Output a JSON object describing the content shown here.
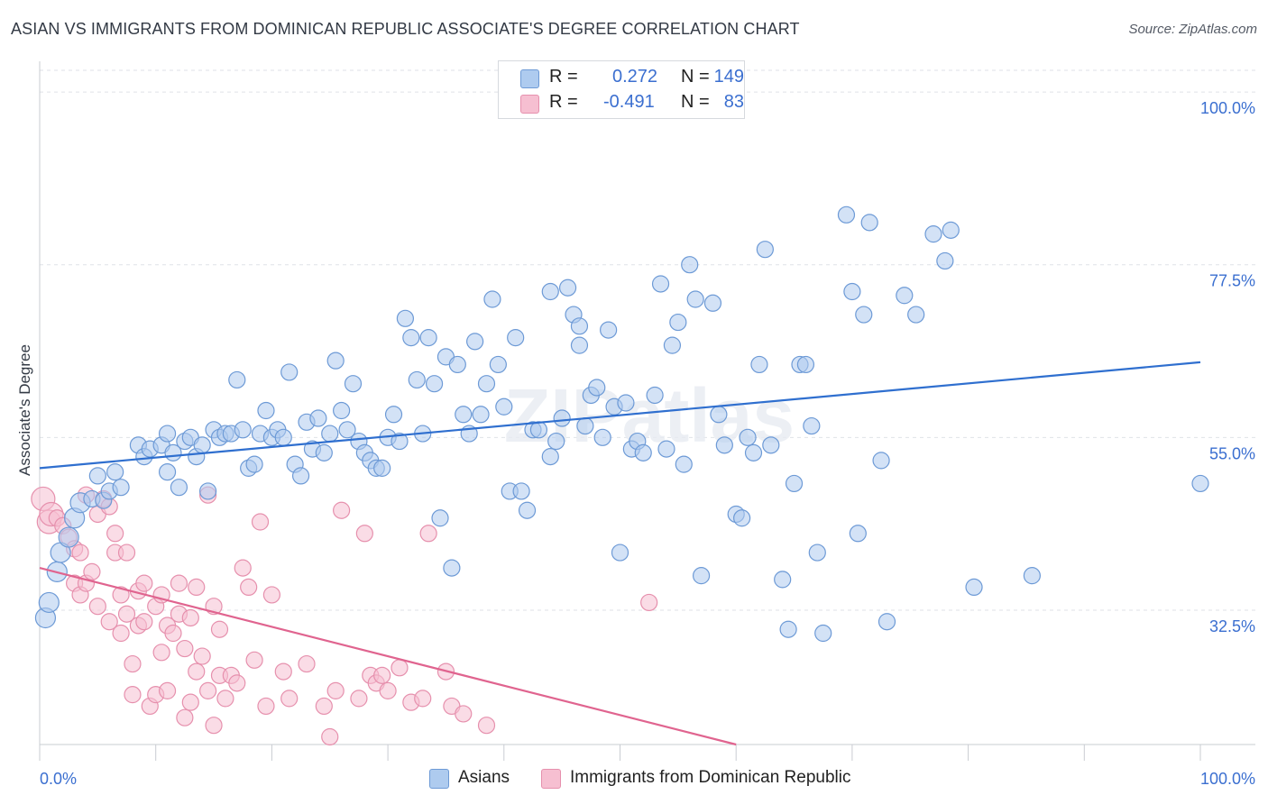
{
  "title": "ASIAN VS IMMIGRANTS FROM DOMINICAN REPUBLIC ASSOCIATE'S DEGREE CORRELATION CHART",
  "source": "Source: ZipAtlas.com",
  "watermark": "ZIPatlas",
  "legend": {
    "r_label": "R =",
    "n_label": "N =",
    "rows": [
      {
        "name": "Asians",
        "r": "0.272",
        "n": "149",
        "color": "#6d9ad6"
      },
      {
        "name": "Immigrants from Dominican Republic",
        "r": "-0.491",
        "n": "83",
        "color": "#e690ad"
      }
    ]
  },
  "chart_data": {
    "type": "scatter",
    "title": "ASIAN VS IMMIGRANTS FROM DOMINICAN REPUBLIC ASSOCIATE'S DEGREE CORRELATION CHART",
    "xlabel": "",
    "ylabel": "Associate's Degree",
    "xlim": [
      0,
      100
    ],
    "ylim": [
      15,
      104
    ],
    "x_tick_labels": [
      "0.0%",
      "100.0%"
    ],
    "y_ticks": [
      32.5,
      55.0,
      77.5,
      100.0
    ],
    "y_tick_labels": [
      "32.5%",
      "55.0%",
      "77.5%",
      "100.0%"
    ],
    "grid": true,
    "colors": {
      "asians_fill": "#aecbef",
      "asians_stroke": "#6d9ad6",
      "asians_line": "#2f6fcf",
      "dom_fill": "#f6bfd1",
      "dom_stroke": "#e690ad",
      "dom_line": "#e0648f",
      "tick_label": "#3b6fd0"
    },
    "series": [
      {
        "name": "Asians",
        "trend": [
          [
            0,
            51.0
          ],
          [
            100,
            64.8
          ]
        ],
        "points": [
          [
            0.5,
            31.5
          ],
          [
            0.8,
            33.5
          ],
          [
            1.5,
            37.5
          ],
          [
            1.8,
            40.0
          ],
          [
            2.5,
            42.0
          ],
          [
            3.0,
            44.5
          ],
          [
            3.5,
            46.5
          ],
          [
            4.5,
            47.0
          ],
          [
            5.0,
            50.0
          ],
          [
            5.5,
            46.8
          ],
          [
            6.0,
            48.0
          ],
          [
            6.5,
            50.5
          ],
          [
            7.0,
            48.5
          ],
          [
            8.5,
            54.0
          ],
          [
            9.0,
            52.5
          ],
          [
            9.5,
            53.5
          ],
          [
            10.5,
            54.0
          ],
          [
            11.0,
            55.5
          ],
          [
            11.0,
            50.5
          ],
          [
            11.5,
            53.0
          ],
          [
            12.0,
            48.5
          ],
          [
            12.5,
            54.5
          ],
          [
            13.0,
            55.0
          ],
          [
            13.5,
            52.5
          ],
          [
            14.0,
            54.0
          ],
          [
            14.5,
            48.0
          ],
          [
            15.0,
            56.0
          ],
          [
            15.5,
            55.0
          ],
          [
            16.0,
            55.5
          ],
          [
            16.5,
            55.5
          ],
          [
            17.0,
            62.5
          ],
          [
            17.5,
            56.0
          ],
          [
            18.0,
            51.0
          ],
          [
            18.5,
            51.5
          ],
          [
            19.0,
            55.5
          ],
          [
            19.5,
            58.5
          ],
          [
            20.0,
            55.0
          ],
          [
            20.5,
            56.0
          ],
          [
            21.0,
            55.0
          ],
          [
            21.5,
            63.5
          ],
          [
            22.0,
            51.5
          ],
          [
            22.5,
            50.0
          ],
          [
            23.0,
            57.0
          ],
          [
            23.5,
            53.5
          ],
          [
            24.0,
            57.5
          ],
          [
            24.5,
            53.0
          ],
          [
            25.0,
            55.5
          ],
          [
            25.5,
            65.0
          ],
          [
            26.0,
            58.5
          ],
          [
            26.5,
            56.0
          ],
          [
            27.0,
            62.0
          ],
          [
            27.5,
            54.5
          ],
          [
            28.0,
            53.0
          ],
          [
            28.5,
            52.0
          ],
          [
            29.0,
            51.0
          ],
          [
            29.5,
            51.0
          ],
          [
            30.0,
            55.0
          ],
          [
            30.5,
            58.0
          ],
          [
            31.0,
            54.5
          ],
          [
            31.5,
            70.5
          ],
          [
            32.0,
            68.0
          ],
          [
            32.5,
            62.5
          ],
          [
            33.0,
            55.5
          ],
          [
            33.5,
            68.0
          ],
          [
            34.0,
            62.0
          ],
          [
            34.5,
            44.5
          ],
          [
            35.0,
            65.5
          ],
          [
            35.5,
            38.0
          ],
          [
            36.0,
            64.5
          ],
          [
            36.5,
            58.0
          ],
          [
            37.0,
            55.5
          ],
          [
            37.5,
            67.5
          ],
          [
            38.0,
            58.0
          ],
          [
            38.5,
            62.0
          ],
          [
            39.0,
            73.0
          ],
          [
            39.5,
            64.5
          ],
          [
            40.0,
            59.0
          ],
          [
            40.5,
            48.0
          ],
          [
            41.0,
            68.0
          ],
          [
            41.5,
            48.0
          ],
          [
            42.0,
            45.5
          ],
          [
            42.5,
            56.0
          ],
          [
            43.0,
            56.0
          ],
          [
            44.0,
            74.0
          ],
          [
            44.0,
            52.5
          ],
          [
            44.5,
            54.5
          ],
          [
            45.0,
            57.5
          ],
          [
            45.5,
            74.5
          ],
          [
            46.0,
            71.0
          ],
          [
            46.5,
            69.5
          ],
          [
            46.5,
            67.0
          ],
          [
            47.0,
            56.5
          ],
          [
            47.5,
            60.5
          ],
          [
            48.0,
            61.5
          ],
          [
            48.5,
            55.0
          ],
          [
            49.0,
            69.0
          ],
          [
            49.5,
            59.0
          ],
          [
            50.0,
            40.0
          ],
          [
            50.5,
            59.5
          ],
          [
            51.0,
            53.5
          ],
          [
            51.5,
            54.5
          ],
          [
            52.0,
            53.0
          ],
          [
            53.0,
            60.5
          ],
          [
            53.5,
            75.0
          ],
          [
            54.0,
            53.5
          ],
          [
            54.5,
            67.0
          ],
          [
            55.0,
            70.0
          ],
          [
            55.5,
            51.5
          ],
          [
            56.0,
            77.5
          ],
          [
            56.5,
            73.0
          ],
          [
            57.0,
            37.0
          ],
          [
            58.0,
            72.5
          ],
          [
            58.5,
            58.0
          ],
          [
            59.0,
            54.0
          ],
          [
            60.0,
            45.0
          ],
          [
            60.5,
            44.5
          ],
          [
            61.0,
            55.0
          ],
          [
            61.5,
            53.0
          ],
          [
            62.0,
            64.5
          ],
          [
            62.5,
            79.5
          ],
          [
            63.0,
            54.0
          ],
          [
            64.0,
            36.5
          ],
          [
            64.5,
            30.0
          ],
          [
            65.0,
            49.0
          ],
          [
            65.5,
            64.5
          ],
          [
            66.0,
            64.5
          ],
          [
            66.5,
            56.5
          ],
          [
            67.0,
            40.0
          ],
          [
            67.5,
            29.5
          ],
          [
            69.5,
            84.0
          ],
          [
            70.0,
            74.0
          ],
          [
            70.5,
            42.5
          ],
          [
            71.0,
            71.0
          ],
          [
            71.5,
            83.0
          ],
          [
            72.5,
            52.0
          ],
          [
            73.0,
            31.0
          ],
          [
            74.5,
            73.5
          ],
          [
            75.5,
            71.0
          ],
          [
            77.0,
            81.5
          ],
          [
            78.0,
            78.0
          ],
          [
            78.5,
            82.0
          ],
          [
            80.5,
            35.5
          ],
          [
            85.5,
            37.0
          ],
          [
            100.0,
            49.0
          ]
        ]
      },
      {
        "name": "Immigrants from Dominican Republic",
        "trend": [
          [
            0,
            38.0
          ],
          [
            60,
            15.0
          ]
        ],
        "points": [
          [
            0.3,
            47.0
          ],
          [
            0.8,
            44.0
          ],
          [
            1.0,
            45.0
          ],
          [
            1.5,
            44.5
          ],
          [
            2.0,
            43.5
          ],
          [
            2.5,
            42.0
          ],
          [
            3.0,
            40.5
          ],
          [
            3.0,
            36.0
          ],
          [
            3.5,
            40.0
          ],
          [
            3.5,
            34.5
          ],
          [
            4.0,
            36.0
          ],
          [
            4.0,
            47.5
          ],
          [
            4.5,
            37.5
          ],
          [
            5.0,
            45.0
          ],
          [
            5.0,
            33.0
          ],
          [
            5.5,
            47.0
          ],
          [
            6.0,
            46.0
          ],
          [
            6.0,
            31.0
          ],
          [
            6.5,
            40.0
          ],
          [
            6.5,
            42.5
          ],
          [
            7.0,
            34.5
          ],
          [
            7.0,
            29.5
          ],
          [
            7.5,
            40.0
          ],
          [
            7.5,
            32.0
          ],
          [
            8.0,
            25.5
          ],
          [
            8.0,
            21.5
          ],
          [
            8.5,
            30.5
          ],
          [
            8.5,
            35.0
          ],
          [
            9.0,
            31.0
          ],
          [
            9.0,
            36.0
          ],
          [
            9.5,
            20.0
          ],
          [
            10.0,
            21.5
          ],
          [
            10.0,
            33.0
          ],
          [
            10.5,
            27.0
          ],
          [
            10.5,
            34.5
          ],
          [
            11.0,
            22.0
          ],
          [
            11.0,
            30.5
          ],
          [
            11.5,
            29.5
          ],
          [
            12.0,
            36.0
          ],
          [
            12.0,
            32.0
          ],
          [
            12.5,
            18.5
          ],
          [
            12.5,
            27.5
          ],
          [
            13.0,
            20.5
          ],
          [
            13.0,
            31.5
          ],
          [
            13.5,
            24.5
          ],
          [
            13.5,
            35.5
          ],
          [
            14.0,
            26.5
          ],
          [
            14.5,
            47.5
          ],
          [
            14.5,
            22.0
          ],
          [
            15.0,
            17.5
          ],
          [
            15.0,
            33.0
          ],
          [
            15.5,
            30.0
          ],
          [
            15.5,
            24.0
          ],
          [
            16.0,
            21.0
          ],
          [
            16.5,
            24.0
          ],
          [
            17.0,
            23.0
          ],
          [
            17.5,
            38.0
          ],
          [
            18.0,
            35.5
          ],
          [
            18.5,
            26.0
          ],
          [
            19.0,
            44.0
          ],
          [
            19.5,
            20.0
          ],
          [
            20.0,
            34.5
          ],
          [
            21.0,
            24.5
          ],
          [
            21.5,
            21.0
          ],
          [
            23.0,
            25.5
          ],
          [
            24.5,
            20.0
          ],
          [
            25.0,
            16.0
          ],
          [
            25.5,
            22.0
          ],
          [
            26.0,
            45.5
          ],
          [
            27.5,
            21.0
          ],
          [
            28.0,
            42.5
          ],
          [
            28.5,
            24.0
          ],
          [
            29.0,
            23.0
          ],
          [
            29.5,
            24.0
          ],
          [
            30.0,
            22.0
          ],
          [
            31.0,
            25.0
          ],
          [
            32.0,
            20.5
          ],
          [
            33.0,
            21.0
          ],
          [
            33.5,
            42.5
          ],
          [
            35.0,
            24.5
          ],
          [
            35.5,
            20.0
          ],
          [
            36.5,
            19.0
          ],
          [
            38.5,
            17.5
          ],
          [
            52.5,
            33.5
          ]
        ]
      }
    ]
  }
}
